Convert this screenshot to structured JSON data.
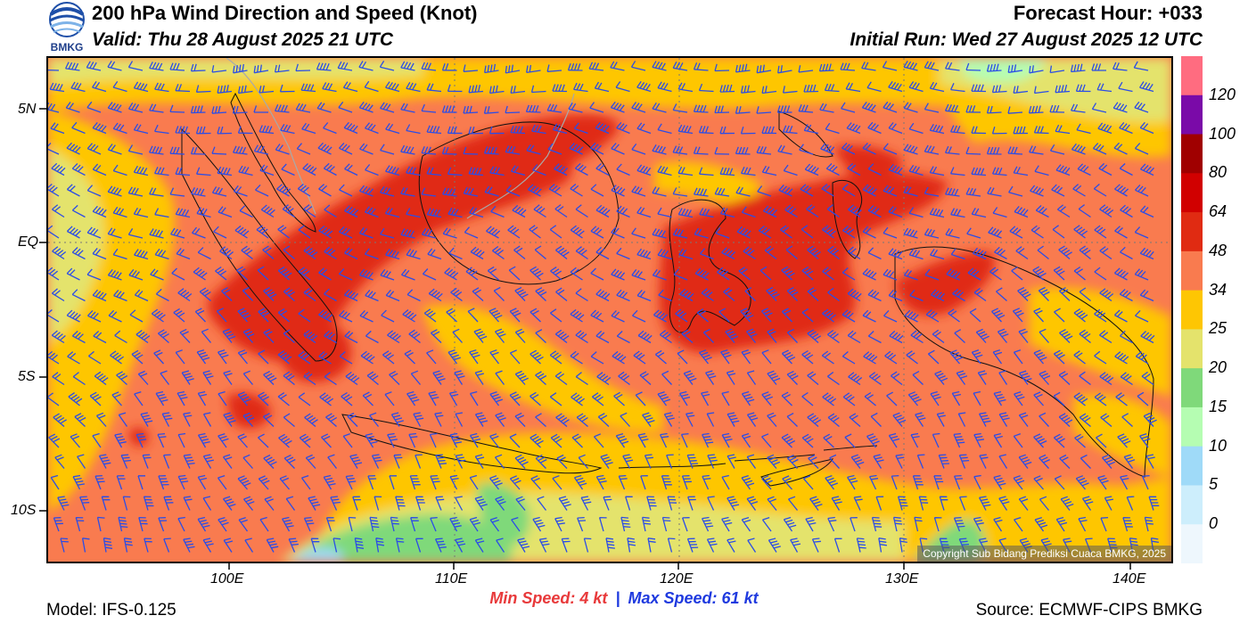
{
  "header": {
    "title": "200 hPa Wind Direction and Speed (Knot)",
    "valid": "Valid: Thu 28 August 2025 21 UTC",
    "forecast_hour": "Forecast Hour: +033",
    "initial_run": "Initial Run: Wed 27 August 2025 12 UTC",
    "logo_text": "BMKG"
  },
  "map": {
    "lat_labels": [
      "5N",
      "EQ",
      "5S",
      "10S"
    ],
    "lon_labels": [
      "100E",
      "110E",
      "120E",
      "130E",
      "140E"
    ],
    "copyright": "Copyright Sub Bidang Prediksi Cuaca BMKG, 2025"
  },
  "colorbar": {
    "labels": [
      "120",
      "100",
      "80",
      "64",
      "48",
      "34",
      "25",
      "20",
      "15",
      "10",
      "5",
      "0"
    ],
    "colors": [
      "#ff6c80",
      "#7a0aa8",
      "#a00000",
      "#d10000",
      "#e02b12",
      "#f97b4f",
      "#fec603",
      "#e4e36c",
      "#7fd97a",
      "#b5fdb2",
      "#9fdaf8",
      "#cdeefc",
      "#eef7fd"
    ]
  },
  "footer": {
    "min_speed": "Min Speed:   4 kt",
    "separator": "|",
    "max_speed": "Max Speed:  61 kt",
    "model": "Model: IFS-0.125",
    "source": "Source: ECMWF-CIPS BMKG"
  }
}
